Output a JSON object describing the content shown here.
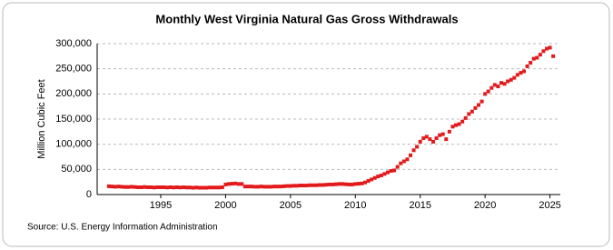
{
  "chart_data": {
    "type": "scatter",
    "title": "Monthly West Virginia Natural Gas Gross Withdrawals",
    "y_label": "Million Cubic Feet",
    "source": "Source: U.S. Energy Information Administration",
    "color": "#e31a1c",
    "grid": true,
    "xlim": [
      1990.1,
      2025.8
    ],
    "xticks": [
      1995,
      2000,
      2005,
      2010,
      2015,
      2020,
      2025
    ],
    "ylim": [
      0,
      300000
    ],
    "yticks": [
      0,
      {
        "value": 50000,
        "label": "50,000"
      },
      {
        "value": 100000,
        "label": "100,000"
      },
      {
        "value": 150000,
        "label": "150,000"
      },
      {
        "value": 200000,
        "label": "200,000"
      },
      {
        "value": 250000,
        "label": "250,000"
      },
      {
        "value": 300000,
        "label": "300,000"
      }
    ],
    "x": [
      1991,
      1991.25,
      1991.5,
      1991.75,
      1992,
      1992.25,
      1992.5,
      1992.75,
      1993,
      1993.25,
      1993.5,
      1993.75,
      1994,
      1994.25,
      1994.5,
      1994.75,
      1995,
      1995.25,
      1995.5,
      1995.75,
      1996,
      1996.25,
      1996.5,
      1996.75,
      1997,
      1997.25,
      1997.5,
      1997.75,
      1998,
      1998.25,
      1998.5,
      1998.75,
      1999,
      1999.25,
      1999.5,
      1999.75,
      2000,
      2000.25,
      2000.5,
      2000.75,
      2001,
      2001.25,
      2001.5,
      2001.75,
      2002,
      2002.25,
      2002.5,
      2002.75,
      2003,
      2003.25,
      2003.5,
      2003.75,
      2004,
      2004.25,
      2004.5,
      2004.75,
      2005,
      2005.25,
      2005.5,
      2005.75,
      2006,
      2006.25,
      2006.5,
      2006.75,
      2007,
      2007.25,
      2007.5,
      2007.75,
      2008,
      2008.25,
      2008.5,
      2008.75,
      2009,
      2009.25,
      2009.5,
      2009.75,
      2010,
      2010.25,
      2010.5,
      2010.75,
      2011,
      2011.25,
      2011.5,
      2011.75,
      2012,
      2012.25,
      2012.5,
      2012.75,
      2013,
      2013.25,
      2013.5,
      2013.75,
      2014,
      2014.25,
      2014.5,
      2014.75,
      2015,
      2015.25,
      2015.5,
      2015.75,
      2016,
      2016.25,
      2016.5,
      2016.75,
      2017,
      2017.25,
      2017.5,
      2017.75,
      2018,
      2018.25,
      2018.5,
      2018.75,
      2019,
      2019.25,
      2019.5,
      2019.75,
      2020,
      2020.25,
      2020.5,
      2020.75,
      2021,
      2021.25,
      2021.5,
      2021.75,
      2022,
      2022.25,
      2022.5,
      2022.75,
      2023,
      2023.25,
      2023.5,
      2023.75,
      2024,
      2024.25,
      2024.5,
      2024.75,
      2025,
      2025.25
    ],
    "values": [
      16500,
      16000,
      15500,
      16000,
      15500,
      15000,
      15000,
      15500,
      15000,
      14500,
      14500,
      15000,
      14500,
      14500,
      14000,
      14500,
      14500,
      14500,
      14000,
      14500,
      14000,
      14500,
      14000,
      14500,
      14000,
      14000,
      13500,
      14000,
      13500,
      13500,
      13500,
      14000,
      14000,
      14000,
      14000,
      14500,
      20000,
      21000,
      21500,
      22000,
      21000,
      21000,
      16000,
      16000,
      16000,
      15500,
      15500,
      16000,
      15500,
      15500,
      15500,
      16000,
      16000,
      16000,
      16500,
      17000,
      17000,
      17500,
      17500,
      18000,
      18000,
      18000,
      18500,
      18500,
      18500,
      19000,
      19000,
      19500,
      20000,
      20000,
      20500,
      21000,
      21000,
      20500,
      20000,
      20000,
      21000,
      21500,
      22000,
      24000,
      27000,
      30000,
      33000,
      36000,
      38000,
      41000,
      44000,
      47000,
      48000,
      55000,
      62000,
      66000,
      70000,
      78000,
      88000,
      95000,
      105000,
      112000,
      115000,
      110000,
      105000,
      112000,
      118000,
      120000,
      110000,
      125000,
      135000,
      138000,
      140000,
      145000,
      152000,
      160000,
      165000,
      172000,
      178000,
      185000,
      200000,
      205000,
      212000,
      218000,
      215000,
      222000,
      220000,
      225000,
      228000,
      232000,
      238000,
      242000,
      245000,
      255000,
      262000,
      270000,
      272000,
      278000,
      285000,
      290000,
      292000,
      275000
    ]
  }
}
